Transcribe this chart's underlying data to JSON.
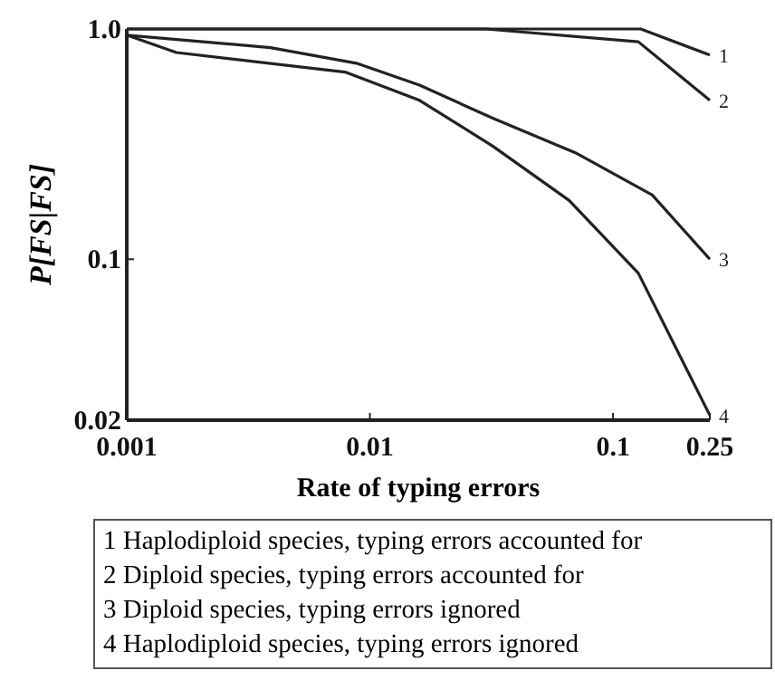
{
  "chart_data": {
    "type": "line",
    "xlabel": "Rate of typing errors",
    "ylabel": "P[FS|FS]",
    "log": "xy",
    "xlim": [
      0.001,
      0.25
    ],
    "ylim": [
      0.02,
      1.0
    ],
    "xticks": [
      0.001,
      0.01,
      0.1,
      0.25
    ],
    "yticks": [
      {
        "value": 0.02,
        "label": "0.02"
      },
      {
        "value": 0.1,
        "label": "0.1"
      },
      {
        "value": 1,
        "label": "1.0"
      }
    ],
    "grid": false,
    "marker": "none",
    "line_style": "solid",
    "series": [
      {
        "name": "1",
        "color": "#222222",
        "x": [
          0.001,
          0.01,
          0.13,
          0.25
        ],
        "values": [
          1.0,
          1.0,
          1.0,
          0.77
        ]
      },
      {
        "name": "2",
        "color": "#222222",
        "x": [
          0.001,
          0.01,
          0.03,
          0.127,
          0.25
        ],
        "values": [
          1.0,
          1.0,
          1.0,
          0.88,
          0.49
        ]
      },
      {
        "name": "3",
        "color": "#222222",
        "x": [
          0.001,
          0.0039,
          0.0088,
          0.016,
          0.032,
          0.07,
          0.145,
          0.25
        ],
        "values": [
          0.94,
          0.83,
          0.71,
          0.57,
          0.41,
          0.29,
          0.19,
          0.1
        ]
      },
      {
        "name": "4",
        "color": "#222222",
        "x": [
          0.001,
          0.0016,
          0.0079,
          0.016,
          0.032,
          0.066,
          0.127,
          0.25
        ],
        "values": [
          0.94,
          0.79,
          0.65,
          0.49,
          0.31,
          0.18,
          0.087,
          0.021
        ]
      }
    ],
    "annotations": [
      "1 Haplodiploid species, typing errors accounted for",
      "2 Diploid species, typing errors accounted for",
      "3 Diploid species, typing errors ignored",
      "4 Haplodiploid species, typing errors ignored"
    ]
  }
}
